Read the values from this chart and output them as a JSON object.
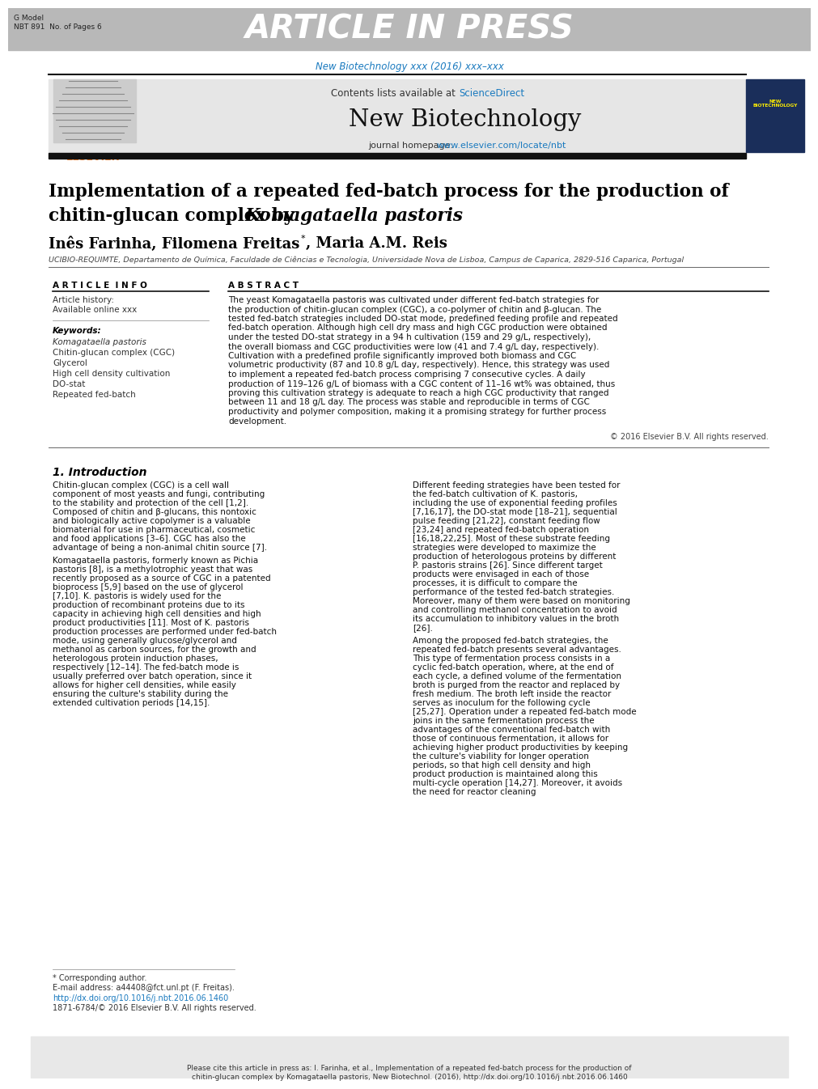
{
  "fig_width": 9.92,
  "fig_height": 13.23,
  "bg_color": "#ffffff",
  "header_bg": "#b8b8b8",
  "header_text": "ARTICLE IN PRESS",
  "header_text_color": "#ffffff",
  "gmodel_line1": "G Model",
  "gmodel_line2": "NBT 891  No. of Pages 6",
  "journal_ref_line": "New Biotechnology xxx (2016) xxx–xxx",
  "journal_ref_color": "#1a7abf",
  "elsevier_color": "#f47920",
  "journal_header_bg": "#e6e6e6",
  "journal_name": "New Biotechnology",
  "contents_pre": "Contents lists available at ",
  "sciencedirect": "ScienceDirect",
  "sciencedirect_color": "#1a7abf",
  "homepage_pre": "journal homepage: ",
  "homepage_url": "www.elsevier.com/locate/nbt",
  "homepage_url_color": "#1a7abf",
  "title_line1": "Implementation of a repeated fed-batch process for the production of",
  "title_line2_pre": "chitin-glucan complex by ",
  "title_line2_italic": "Komagataella pastoris",
  "authors_pre": "Inês Farinha, Filomena Freitas",
  "authors_star": "*",
  "authors_post": ", Maria A.M. Reis",
  "affiliation": "UCIBIO-REQUIMTE, Departamento de Química, Faculdade de Ciências e Tecnologia, Universidade Nova de Lisboa, Campus de Caparica, 2829-516 Caparica, Portugal",
  "ai_header": "A R T I C L E  I N F O",
  "abs_header": "A B S T R A C T",
  "art_history": "Article history:",
  "available": "Available online xxx",
  "kw_label": "Keywords:",
  "keywords": [
    "Komagataella pastoris",
    "Chitin-glucan complex (CGC)",
    "Glycerol",
    "High cell density cultivation",
    "DO-stat",
    "Repeated fed-batch"
  ],
  "keywords_italic": [
    true,
    false,
    false,
    false,
    false,
    false
  ],
  "abstract_text": "The yeast Komagataella pastoris was cultivated under different fed-batch strategies for the production of chitin-glucan complex (CGC), a co-polymer of chitin and β-glucan. The tested fed-batch strategies included DO-stat mode, predefined feeding profile and repeated fed-batch operation. Although high cell dry mass and high CGC production were obtained under the tested DO-stat strategy in a 94 h cultivation (159 and 29 g/L, respectively), the overall biomass and CGC productivities were low (41 and 7.4 g/L day, respectively). Cultivation with a predefined profile significantly improved both biomass and CGC volumetric productivity (87 and 10.8 g/L day, respectively). Hence, this strategy was used to implement a repeated fed-batch process comprising 7 consecutive cycles. A daily production of 119–126 g/L of biomass with a CGC content of 11–16 wt% was obtained, thus proving this cultivation strategy is adequate to reach a high CGC productivity that ranged between 11 and 18 g/L day. The process was stable and reproducible in terms of CGC productivity and polymer composition, making it a promising strategy for further process development.",
  "copyright": "© 2016 Elsevier B.V. All rights reserved.",
  "sec1_title": "1. Introduction",
  "col1_para1": "    Chitin-glucan complex (CGC) is a cell wall component of most yeasts and fungi, contributing to the stability and protection of the cell [1,2]. Composed of chitin and β-glucans, this nontoxic and biologically active copolymer is a valuable biomaterial for use in pharmaceutical, cosmetic and food applications [3–6]. CGC has also the advantage of being a non-animal chitin source [7].",
  "col1_para2": "    Komagataella pastoris, formerly known as Pichia pastoris [8], is a methylotrophic yeast that was recently proposed as a source of CGC in a patented bioprocess [5,9] based on the use of glycerol [7,10]. K. pastoris is widely used for the production of recombinant proteins due to its capacity in achieving high cell densities and high product productivities [11]. Most of K. pastoris production processes are performed under fed-batch mode, using generally glucose/glycerol and methanol as carbon sources, for the growth and heterologous protein induction phases, respectively [12–14]. The fed-batch mode is usually preferred over batch operation, since it allows for higher cell densities, while easily ensuring the culture's stability during the extended cultivation periods [14,15].",
  "col2_para1": "    Different feeding strategies have been tested for the fed-batch cultivation of K. pastoris, including the use of exponential feeding profiles [7,16,17], the DO-stat mode [18–21], sequential pulse feeding [21,22], constant feeding flow [23,24] and repeated fed-batch operation [16,18,22,25]. Most of these substrate feeding strategies were developed to maximize the production of heterologous proteins by different P. pastoris strains [26]. Since different target products were envisaged in each of those processes, it is difficult to compare the performance of the tested fed-batch strategies. Moreover, many of them were based on monitoring and controlling methanol concentration to avoid its accumulation to inhibitory values in the broth [26].",
  "col2_para2": "    Among the proposed fed-batch strategies, the repeated fed-batch presents several advantages. This type of fermentation process consists in a cyclic fed-batch operation, where, at the end of each cycle, a defined volume of the fermentation broth is purged from the reactor and replaced by fresh medium. The broth left inside the reactor serves as inoculum for the following cycle [25,27]. Operation under a repeated fed-batch mode joins in the same fermentation process the advantages of the conventional fed-batch with those of continuous fermentation, it allows for achieving higher product productivities by keeping the culture's viability for longer operation periods, so that high cell density and high product production is maintained along this multi-cycle operation [14,27]. Moreover, it avoids the need for reactor cleaning",
  "fn_star": "* Corresponding author.",
  "fn_email": "E-mail address: a44408@fct.unl.pt (F. Freitas).",
  "fn_doi": "http://dx.doi.org/10.1016/j.nbt.2016.06.1460",
  "fn_issn": "1871-6784/© 2016 Elsevier B.V. All rights reserved.",
  "cite_box_bg": "#e8e8e8",
  "cite_line1": "Please cite this article in press as: I. Farinha, et al., Implementation of a repeated fed-batch process for the production of chitin-glucan complex by",
  "cite_line2": "Komagataella pastoris, New Biotechnol. (2016), http://dx.doi.org/10.1016/j.nbt.2016.06.1460",
  "link_color": "#1a7abf"
}
